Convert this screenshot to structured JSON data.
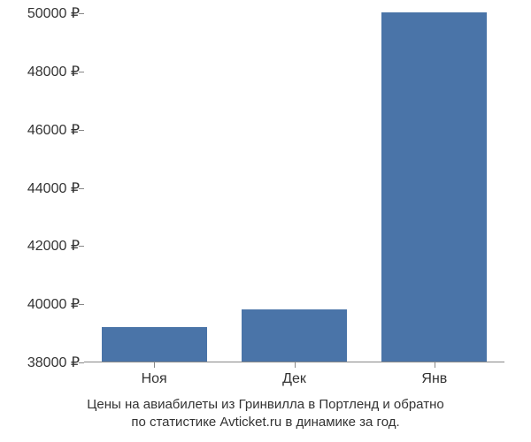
{
  "chart": {
    "type": "bar",
    "background_color": "#ffffff",
    "axis_color": "#888888",
    "text_color": "#333333",
    "label_fontsize": 16,
    "caption_fontsize": 15,
    "currency_symbol": "₽",
    "ylim": [
      38000,
      50000
    ],
    "ytick_step": 2000,
    "yticks": [
      38000,
      40000,
      42000,
      44000,
      46000,
      48000,
      50000
    ],
    "categories": [
      "Ноя",
      "Дек",
      "Янв"
    ],
    "values": [
      39200,
      39800,
      50000
    ],
    "bar_color": "#4a74a8",
    "bar_width_ratio": 0.75,
    "caption_line1": "Цены на авиабилеты из Гринвилла в Портленд и обратно",
    "caption_line2": "по статистике Avticket.ru в динамике за год."
  }
}
